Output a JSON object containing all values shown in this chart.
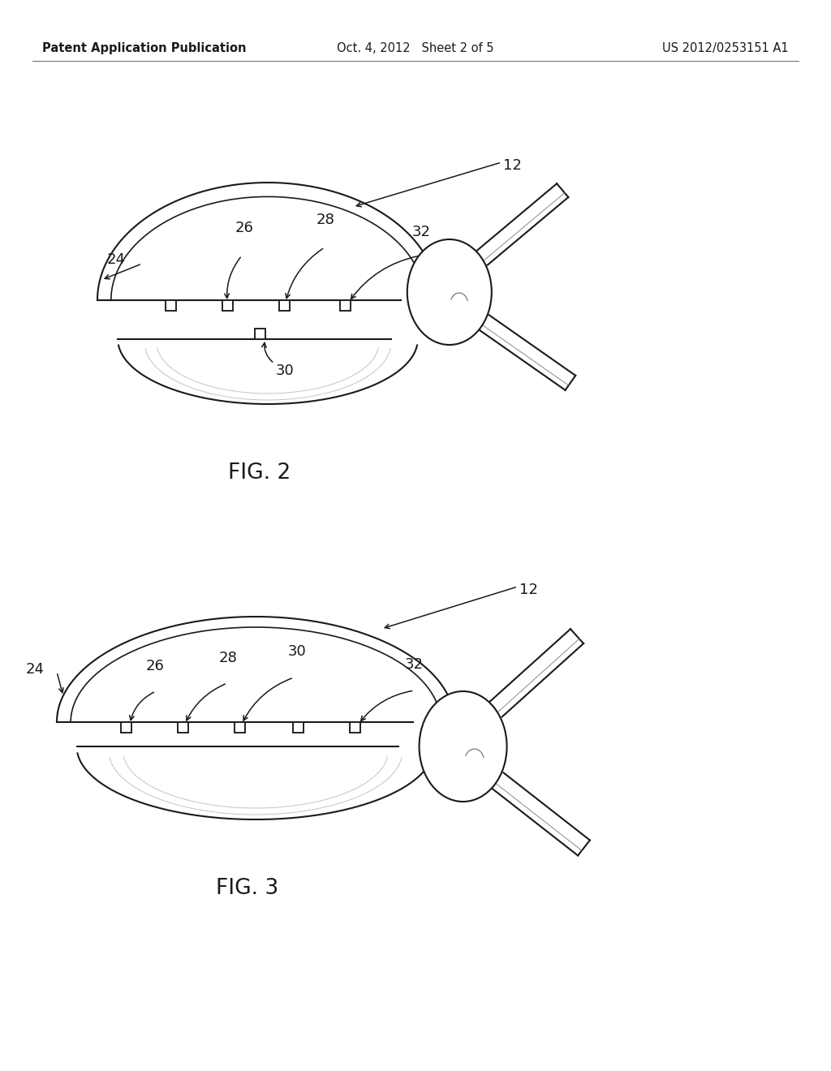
{
  "bg_color": "#ffffff",
  "line_color": "#1a1a1a",
  "header_left": "Patent Application Publication",
  "header_mid": "Oct. 4, 2012   Sheet 2 of 5",
  "header_right": "US 2012/0253151 A1",
  "fig2_label": "FIG. 2",
  "fig3_label": "FIG. 3"
}
